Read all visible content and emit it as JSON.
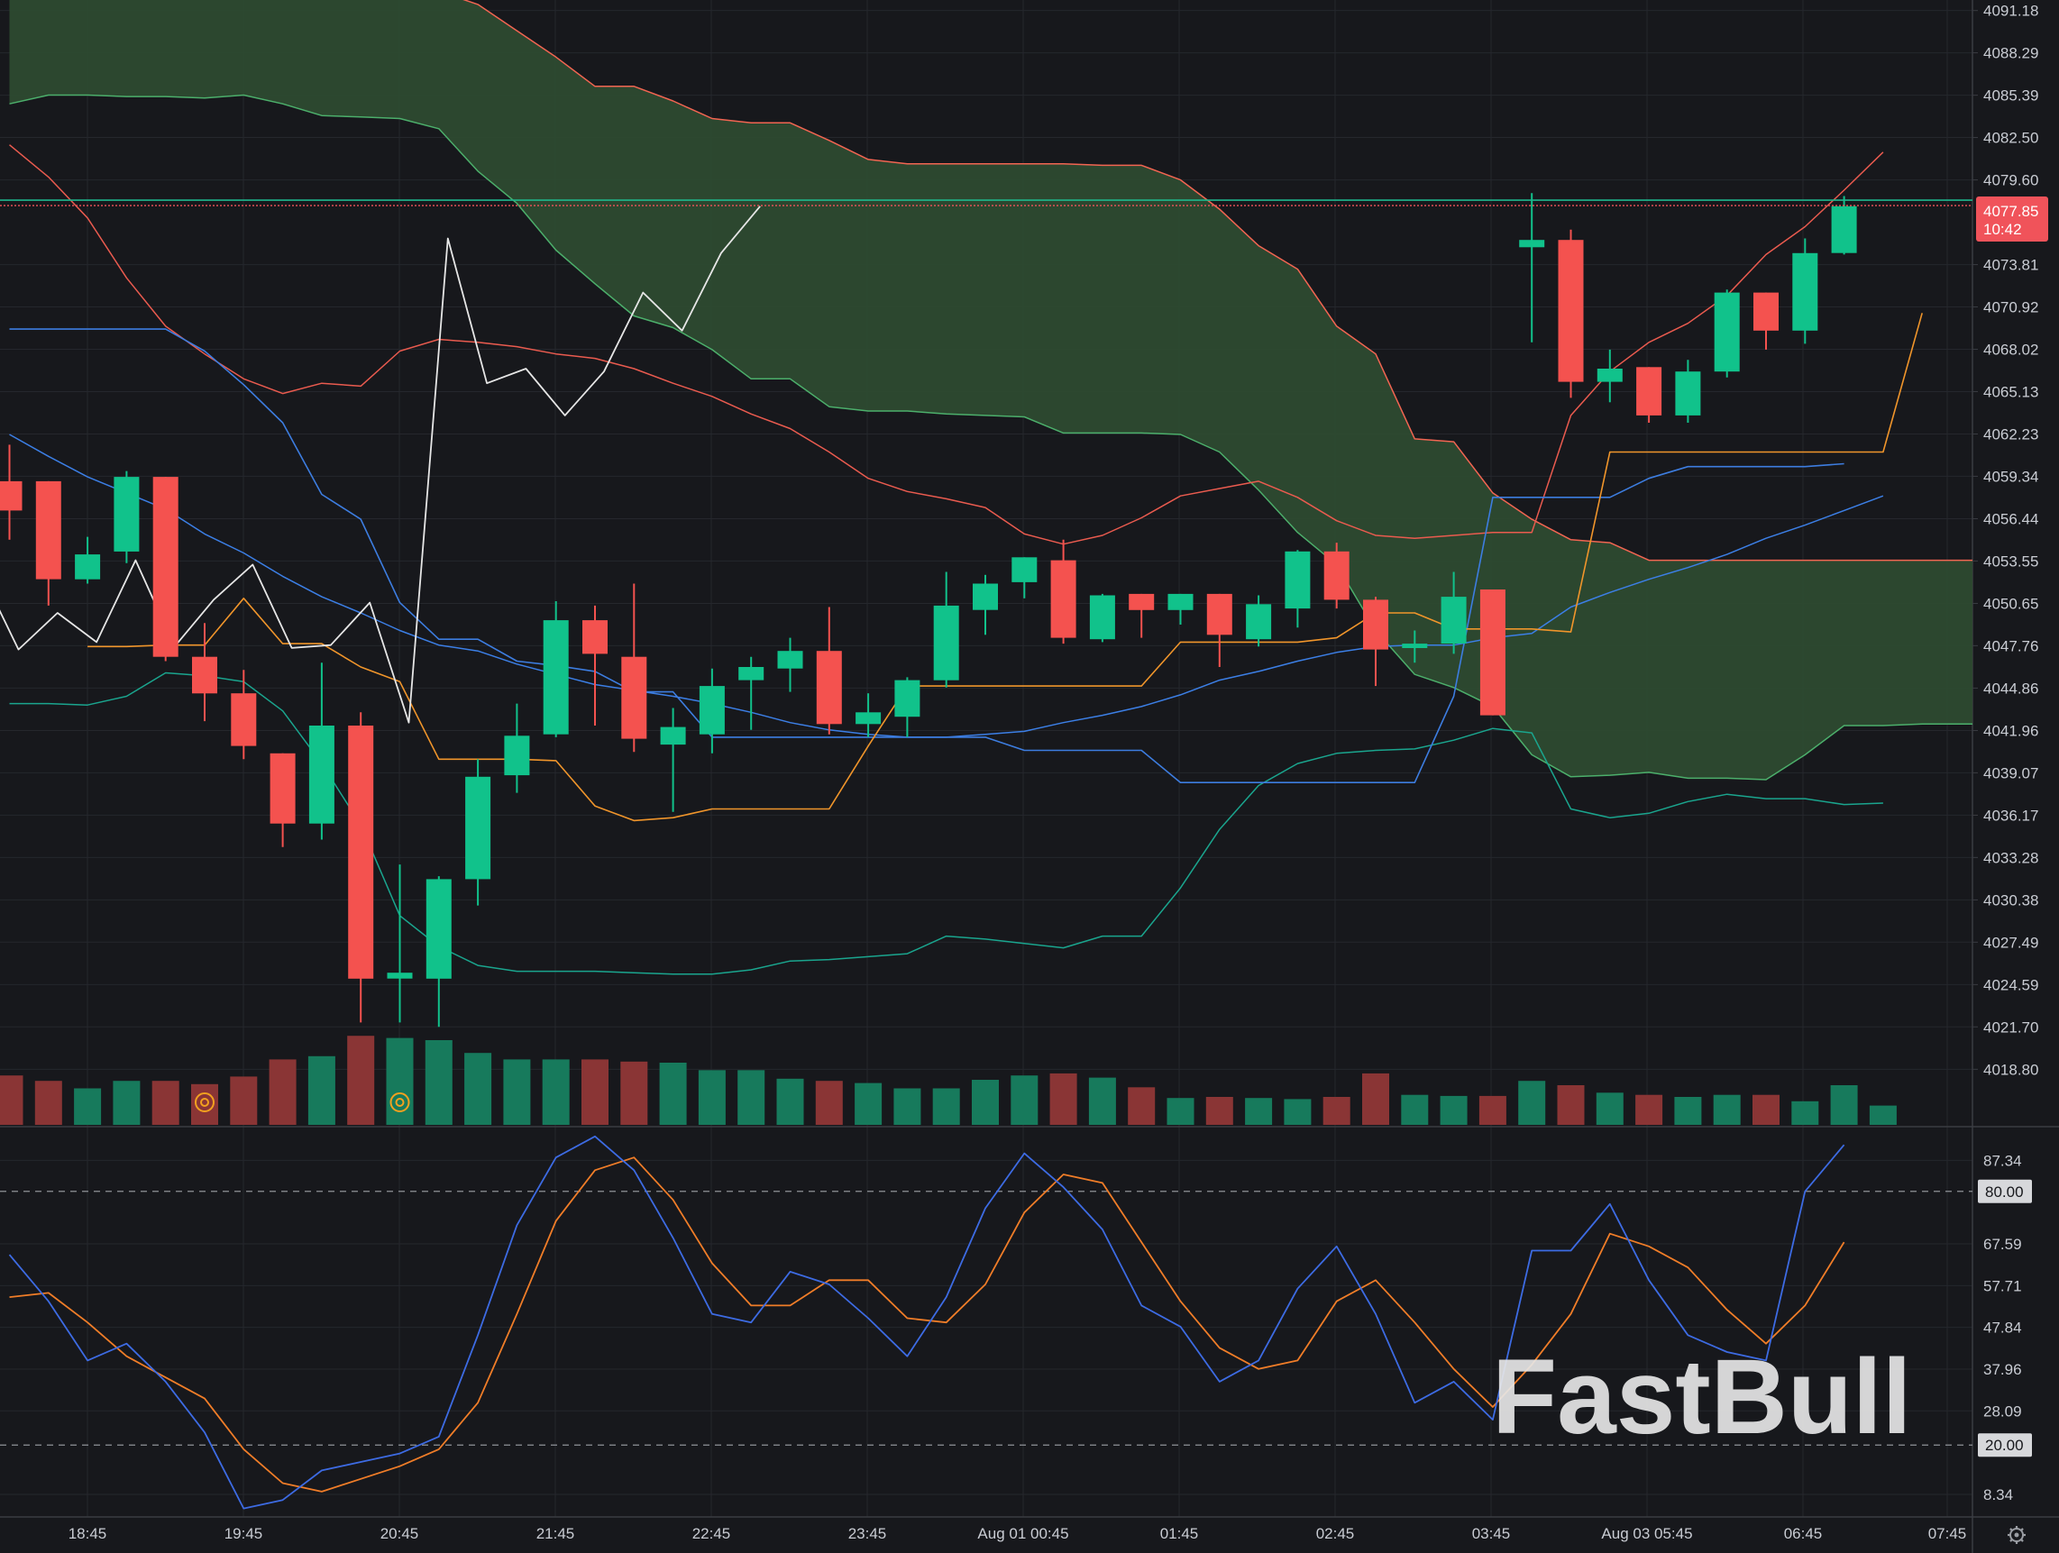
{
  "brand": {
    "watermark": "FastBull"
  },
  "colors": {
    "background": "#17181c",
    "grid": "#25272d",
    "up": "#11c28b",
    "down": "#f4524f",
    "vol_up": "#177a5c",
    "vol_down": "#8a3535",
    "cloud": "#2d4a30",
    "senkou_a": "#4caf6b",
    "senkou_b": "#f26552",
    "tenkan": "#3d7de0",
    "kijun": "#f0952b",
    "chikou": "#e6e6e6",
    "bb_upper": "#ea5b4f",
    "bb_middle": "#3c7fe6",
    "bb_lower": "#1aa58e",
    "stoch_k": "#3d6be3",
    "stoch_d": "#f07d28",
    "price_label_bg": "#f0535a",
    "last_line": "#1fb68c"
  },
  "chart_data": {
    "type": "candlestick",
    "price_axis": {
      "ticks": [
        "4091.18",
        "4088.29",
        "4085.39",
        "4082.50",
        "4079.60",
        "4073.81",
        "4070.92",
        "4068.02",
        "4065.13",
        "4062.23",
        "4059.34",
        "4056.44",
        "4053.55",
        "4050.65",
        "4047.76",
        "4044.86",
        "4041.96",
        "4039.07",
        "4036.17",
        "4033.28",
        "4030.38",
        "4027.49",
        "4024.59",
        "4021.70",
        "4018.80"
      ],
      "range": [
        4015.0,
        4091.9
      ]
    },
    "current_price": {
      "value": "4077.85",
      "countdown": "10:42",
      "level": 4077.85
    },
    "time_axis": [
      "18:45",
      "19:45",
      "20:45",
      "21:45",
      "22:45",
      "23:45",
      "Aug 01 00:45",
      "01:45",
      "02:45",
      "03:45",
      "Aug 03 05:45",
      "06:45",
      "07:45"
    ],
    "candles": [
      [
        4059.0,
        4061.5,
        4055.0,
        4057.0
      ],
      [
        4059.0,
        4059.0,
        4050.5,
        4052.3
      ],
      [
        4052.3,
        4055.2,
        4052.0,
        4054.0
      ],
      [
        4054.2,
        4059.7,
        4053.4,
        4059.3
      ],
      [
        4059.3,
        4059.3,
        4046.7,
        4047.0
      ],
      [
        4047.0,
        4049.3,
        4042.6,
        4044.5
      ],
      [
        4044.5,
        4046.1,
        4040.0,
        4040.9
      ],
      [
        4040.4,
        4040.4,
        4034.0,
        4035.6
      ],
      [
        4035.6,
        4046.6,
        4034.5,
        4042.3
      ],
      [
        4042.3,
        4043.2,
        4022.0,
        4025.0
      ],
      [
        4025.0,
        4032.8,
        4022.0,
        4025.4
      ],
      [
        4025.0,
        4032.0,
        4021.7,
        4031.8
      ],
      [
        4031.8,
        4040.0,
        4030.0,
        4038.8
      ],
      [
        4038.9,
        4043.8,
        4037.7,
        4041.6
      ],
      [
        4041.7,
        4050.8,
        4041.5,
        4049.5
      ],
      [
        4049.5,
        4050.5,
        4042.3,
        4047.2
      ],
      [
        4047.0,
        4052.0,
        4040.5,
        4041.4
      ],
      [
        4041.0,
        4043.5,
        4036.4,
        4042.2
      ],
      [
        4041.7,
        4046.2,
        4040.4,
        4045.0
      ],
      [
        4045.4,
        4047.0,
        4042.0,
        4046.3
      ],
      [
        4046.2,
        4048.3,
        4044.6,
        4047.4
      ],
      [
        4047.4,
        4050.4,
        4041.7,
        4042.4
      ],
      [
        4042.4,
        4044.5,
        4041.5,
        4043.2
      ],
      [
        4042.9,
        4045.6,
        4041.5,
        4045.4
      ],
      [
        4045.4,
        4052.8,
        4044.9,
        4050.5
      ],
      [
        4050.2,
        4052.6,
        4048.5,
        4052.0
      ],
      [
        4052.1,
        4053.8,
        4051.0,
        4053.8
      ],
      [
        4053.6,
        4055.0,
        4047.9,
        4048.3
      ],
      [
        4048.2,
        4051.3,
        4048.0,
        4051.2
      ],
      [
        4051.3,
        4051.3,
        4048.3,
        4050.2
      ],
      [
        4050.2,
        4051.3,
        4049.2,
        4051.3
      ],
      [
        4051.3,
        4051.3,
        4046.3,
        4048.5
      ],
      [
        4048.2,
        4051.2,
        4047.7,
        4050.6
      ],
      [
        4050.3,
        4054.3,
        4049.0,
        4054.2
      ],
      [
        4054.2,
        4054.8,
        4050.3,
        4050.9
      ],
      [
        4050.9,
        4051.1,
        4045.0,
        4047.5
      ],
      [
        4047.6,
        4048.8,
        4046.6,
        4047.9
      ],
      [
        4047.9,
        4052.8,
        4047.2,
        4051.1
      ],
      [
        4051.6,
        4051.6,
        4043.0,
        4043.0
      ],
      [
        4075.0,
        4078.7,
        4068.5,
        4075.5
      ],
      [
        4075.5,
        4076.2,
        4064.7,
        4065.8
      ],
      [
        4065.8,
        4068.0,
        4064.4,
        4066.7
      ],
      [
        4066.8,
        4066.8,
        4063.0,
        4063.5
      ],
      [
        4063.5,
        4067.3,
        4063.0,
        4066.5
      ],
      [
        4066.5,
        4072.1,
        4066.1,
        4071.9
      ],
      [
        4071.9,
        4071.9,
        4068.0,
        4069.3
      ],
      [
        4069.3,
        4075.6,
        4068.4,
        4074.6
      ],
      [
        4074.6,
        4078.5,
        4074.5,
        4077.8
      ]
    ],
    "volume": [
      46,
      41,
      34,
      41,
      41,
      38,
      45,
      61,
      64,
      83,
      81,
      79,
      67,
      61,
      61,
      61,
      59,
      58,
      51,
      51,
      43,
      41,
      39,
      34,
      34,
      42,
      46,
      48,
      44,
      35,
      25,
      26,
      25,
      24,
      26,
      48,
      28,
      27,
      27,
      41,
      37,
      30,
      28,
      26,
      28,
      28,
      22,
      37,
      18
    ],
    "volume_marks": [
      5,
      10
    ],
    "volume_range": [
      0,
      84
    ],
    "indicators": {
      "senkou_a": [
        4084.8,
        4085.4,
        4085.4,
        4085.3,
        4085.3,
        4085.2,
        4085.4,
        4084.8,
        4084.0,
        4083.9,
        4083.8,
        4083.1,
        4080.2,
        4078.0,
        4074.8,
        4072.5,
        4070.3,
        4069.5,
        4068.0,
        4066.0,
        4066.0,
        4064.1,
        4063.8,
        4063.8,
        4063.6,
        4063.5,
        4063.4,
        4062.3,
        4062.3,
        4062.3,
        4062.2,
        4061.0,
        4058.4,
        4055.5,
        4053.3,
        4048.8,
        4045.8,
        4044.9,
        4043.6,
        4040.3,
        4038.8,
        4038.9,
        4039.1,
        4038.7,
        4038.7,
        4038.6,
        4040.3,
        4042.3,
        4042.3,
        4042.4
      ],
      "senkou_b": [
        4092.5,
        4092.5,
        4092.5,
        4092.5,
        4092.5,
        4092.5,
        4092.5,
        4092.5,
        4092.5,
        4092.5,
        4092.5,
        4092.5,
        4091.6,
        4089.8,
        4088.0,
        4086.0,
        4086.0,
        4085.0,
        4083.8,
        4083.5,
        4083.5,
        4082.3,
        4081.0,
        4080.7,
        4080.7,
        4080.7,
        4080.7,
        4080.7,
        4080.6,
        4080.6,
        4079.6,
        4077.6,
        4075.1,
        4073.5,
        4069.6,
        4067.7,
        4061.9,
        4061.7,
        4058.2,
        4056.4,
        4055.0,
        4054.8,
        4053.6,
        4053.6,
        4053.6,
        4053.6,
        4053.6,
        4053.6,
        4053.6,
        4053.6,
        4053.6
      ],
      "tenkan": [
        4069.4,
        4069.4,
        4069.4,
        4069.4,
        4069.4,
        4067.9,
        4065.6,
        4063.0,
        4058.1,
        4056.4,
        4050.7,
        4048.2,
        4048.2,
        4046.7,
        4046.4,
        4046.0,
        4044.6,
        4044.6,
        4041.5,
        4041.5,
        4041.5,
        4041.5,
        4041.5,
        4041.5,
        4041.5,
        4041.5,
        4040.6,
        4040.6,
        4040.6,
        4040.6,
        4038.4,
        4038.4,
        4038.4,
        4038.4,
        4038.4,
        4038.4,
        4038.4,
        4044.3,
        4057.9,
        4057.9,
        4057.9,
        4057.9,
        4059.2,
        4060.0,
        4060.0,
        4060.0,
        4060.0,
        4060.2
      ],
      "tenkan_start": 0,
      "kijun": [
        4047.7,
        4047.7,
        4047.8,
        4047.8,
        4051.0,
        4047.9,
        4047.9,
        4046.3,
        4045.3,
        4040.0,
        4040.0,
        4040.0,
        4039.9,
        4036.8,
        4035.8,
        4036.0,
        4036.6,
        4036.6,
        4036.6,
        4036.6,
        4040.9,
        4045.0,
        4045.0,
        4045.0,
        4045.0,
        4045.0,
        4045.0,
        4045.0,
        4048.0,
        4048.0,
        4048.0,
        4048.0,
        4048.3,
        4050.0,
        4050.0,
        4048.9,
        4048.9,
        4048.9,
        4048.7,
        4061.0,
        4061.0,
        4061.0,
        4061.0,
        4061.0,
        4061.0,
        4061.0,
        4061.0,
        4070.5
      ],
      "kijun_start": 2,
      "chikou": [
        4053.0,
        4047.5,
        4050.0,
        4048.0,
        4053.6,
        4047.7,
        4050.9,
        4053.3,
        4047.6,
        4047.8,
        4050.7,
        4042.5,
        4075.6,
        4065.7,
        4066.7,
        4063.5,
        4066.5,
        4071.9,
        4069.3,
        4074.6,
        4077.8
      ],
      "chikou_start": 1,
      "bb_upper": [
        4082.0,
        4079.8,
        4077.0,
        4072.9,
        4069.6,
        4067.7,
        4066.0,
        4065.0,
        4065.7,
        4065.5,
        4067.9,
        4068.7,
        4068.5,
        4068.2,
        4067.7,
        4067.4,
        4066.7,
        4065.7,
        4064.8,
        4063.6,
        4062.6,
        4061.0,
        4059.2,
        4058.3,
        4057.8,
        4057.2,
        4055.4,
        4054.7,
        4055.3,
        4056.5,
        4058.0,
        4058.5,
        4059.0,
        4057.9,
        4056.3,
        4055.3,
        4055.1,
        4055.3,
        4055.5,
        4055.5,
        4063.5,
        4066.5,
        4068.5,
        4069.8,
        4071.7,
        4074.5,
        4076.4,
        4078.9,
        4081.5
      ],
      "bb_middle": [
        4062.2,
        4060.7,
        4059.3,
        4058.2,
        4057.1,
        4055.4,
        4054.1,
        4052.5,
        4051.1,
        4050.0,
        4048.8,
        4047.8,
        4047.4,
        4046.5,
        4045.8,
        4045.1,
        4044.7,
        4044.3,
        4043.8,
        4043.2,
        4042.5,
        4042.0,
        4041.7,
        4041.5,
        4041.5,
        4041.7,
        4041.9,
        4042.5,
        4043.0,
        4043.6,
        4044.4,
        4045.4,
        4046.0,
        4046.7,
        4047.3,
        4047.7,
        4047.8,
        4047.8,
        4048.3,
        4048.6,
        4050.4,
        4051.4,
        4052.3,
        4053.1,
        4054.0,
        4055.1,
        4056.0,
        4057.0,
        4058.0
      ],
      "bb_lower": [
        4043.8,
        4043.8,
        4043.7,
        4044.3,
        4045.9,
        4045.7,
        4045.3,
        4043.3,
        4039.7,
        4035.5,
        4029.3,
        4027.2,
        4025.9,
        4025.5,
        4025.5,
        4025.5,
        4025.4,
        4025.3,
        4025.3,
        4025.6,
        4026.2,
        4026.3,
        4026.5,
        4026.7,
        4027.9,
        4027.7,
        4027.4,
        4027.1,
        4027.9,
        4027.9,
        4031.2,
        4035.2,
        4038.2,
        4039.7,
        4040.4,
        4040.6,
        4040.7,
        4041.3,
        4042.1,
        4041.8,
        4036.6,
        4036.0,
        4036.3,
        4037.1,
        4037.6,
        4037.3,
        4037.3,
        4036.9,
        4037.0
      ],
      "bb_start": 0
    },
    "stochastic": {
      "ticks": [
        "87.34",
        "67.59",
        "57.71",
        "47.84",
        "37.96",
        "28.09",
        "8.34"
      ],
      "levels": [
        80,
        20
      ],
      "level_labels": [
        "80.00",
        "20.00"
      ],
      "range": [
        3.0,
        95.3
      ],
      "k": [
        65,
        54,
        40,
        44,
        35,
        23,
        5,
        7,
        14,
        16,
        18,
        22,
        46,
        72,
        88,
        93,
        85,
        69,
        51,
        49,
        61,
        58,
        50,
        41,
        55,
        76,
        89,
        81,
        71,
        53,
        48,
        35,
        40,
        57,
        67,
        51,
        30,
        35,
        26,
        66,
        66,
        77,
        59,
        46,
        42,
        40,
        80,
        91
      ],
      "d": [
        55,
        56,
        49,
        41,
        36,
        31,
        19,
        11,
        9,
        12,
        15,
        19,
        30,
        51,
        73,
        85,
        88,
        78,
        63,
        53,
        53,
        59,
        59,
        50,
        49,
        58,
        75,
        84,
        82,
        68,
        54,
        43,
        38,
        40,
        54,
        59,
        49,
        38,
        29,
        39,
        51,
        70,
        67,
        62,
        52,
        44,
        53,
        68
      ]
    }
  }
}
